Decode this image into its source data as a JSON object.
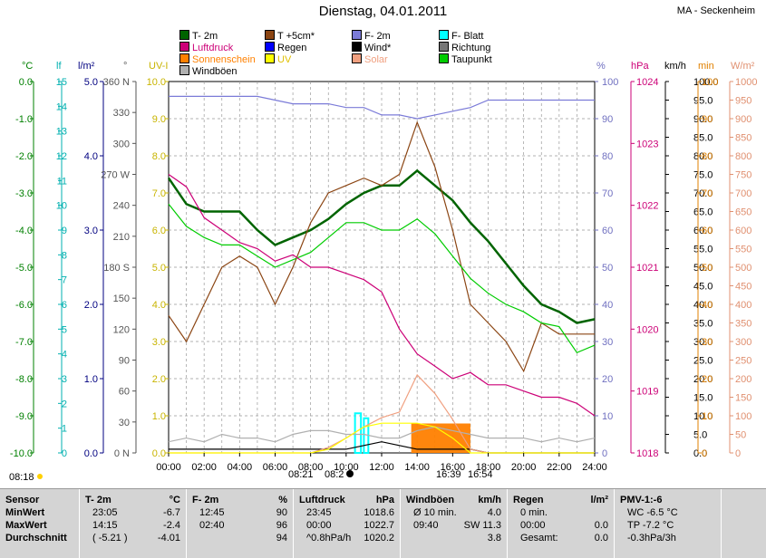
{
  "title": "Dienstag, 04.01.2011",
  "station": "MA - Seckenheim",
  "legend": [
    {
      "label": "T- 2m",
      "color": "#006400",
      "text": "#000000"
    },
    {
      "label": "T +5cm*",
      "color": "#8b4513",
      "text": "#000000"
    },
    {
      "label": "F- 2m",
      "color": "#7b7bd8",
      "text": "#000000"
    },
    {
      "label": "F- Blatt",
      "color": "#00ffff",
      "text": "#000000"
    },
    {
      "label": "Luftdruck",
      "color": "#cc0077",
      "text": "#cc0077"
    },
    {
      "label": "Regen",
      "color": "#0000ff",
      "text": "#000000"
    },
    {
      "label": "Wind*",
      "color": "#000000",
      "text": "#000000"
    },
    {
      "label": "Richtung",
      "color": "#777777",
      "text": "#000000"
    },
    {
      "label": "Sonnenschein",
      "color": "#ff8000",
      "text": "#ff8000"
    },
    {
      "label": "UV",
      "color": "#ffff00",
      "text": "#e0c000"
    },
    {
      "label": "Solar",
      "color": "#f0a080",
      "text": "#f0a080"
    },
    {
      "label": "Taupunkt",
      "color": "#00cc00",
      "text": "#000000"
    },
    {
      "label": "Windböen",
      "color": "#b0b0b0",
      "text": "#000000"
    }
  ],
  "axes": {
    "temp": {
      "unit": "°C",
      "color": "#008000",
      "ticks": [
        "0.0",
        "-1.0",
        "-2.0",
        "-3.0",
        "-4.0",
        "-5.0",
        "-6.0",
        "-7.0",
        "-8.0",
        "-9.0",
        "-10.0"
      ]
    },
    "leaf": {
      "unit": "lf",
      "color": "#00b0b0",
      "ticks": [
        "15",
        "14",
        "13",
        "12",
        "11",
        "10",
        "9",
        "8",
        "7",
        "6",
        "5",
        "4",
        "3",
        "2",
        "1",
        "0"
      ]
    },
    "rain": {
      "unit": "l/m²",
      "color": "#000080",
      "ticks": [
        "5.0",
        "4.0",
        "3.0",
        "2.0",
        "1.0",
        "0.0"
      ]
    },
    "dir": {
      "unit": "°",
      "color": "#555555",
      "ticks": [
        "360 N",
        "330",
        "300",
        "270 W",
        "240",
        "210",
        "180 S",
        "150",
        "120",
        "90",
        "60",
        "30",
        "0 N"
      ]
    },
    "uv": {
      "unit": "UV-I",
      "color": "#c8b400",
      "ticks": [
        "10.0",
        "9.0",
        "8.0",
        "7.0",
        "6.0",
        "5.0",
        "4.0",
        "3.0",
        "2.0",
        "1.0",
        "0.0"
      ]
    },
    "hum": {
      "unit": "%",
      "color": "#7070c0",
      "ticks": [
        "100",
        "90",
        "80",
        "70",
        "60",
        "50",
        "40",
        "30",
        "20",
        "10",
        "0"
      ]
    },
    "press": {
      "unit": "hPa",
      "color": "#cc0077",
      "ticks": [
        "1024",
        "1023",
        "1022",
        "1021",
        "1020",
        "1019",
        "1018"
      ]
    },
    "wind": {
      "unit": "km/h",
      "color": "#000000",
      "ticks": [
        "100.0",
        "95.0",
        "90.0",
        "85.0",
        "80.0",
        "75.0",
        "70.0",
        "65.0",
        "60.0",
        "55.0",
        "50.0",
        "45.0",
        "40.0",
        "35.0",
        "30.0",
        "25.0",
        "20.0",
        "15.0",
        "10.0",
        "5.0",
        "0.0"
      ]
    },
    "sunmin": {
      "unit": "min",
      "color": "#e08000",
      "ticks": [
        "100",
        "90",
        "80",
        "70",
        "60",
        "50",
        "40",
        "30",
        "20",
        "10",
        "0"
      ]
    },
    "solar": {
      "unit": "W/m²",
      "color": "#e09070",
      "ticks": [
        "1000",
        "950",
        "900",
        "850",
        "800",
        "750",
        "700",
        "650",
        "600",
        "550",
        "500",
        "450",
        "400",
        "350",
        "300",
        "250",
        "200",
        "150",
        "100",
        "50",
        "0"
      ]
    }
  },
  "xticks": [
    "00:00",
    "02:00",
    "04:00",
    "06:00",
    "08:00",
    "10:00",
    "12:00",
    "14:00",
    "16:00",
    "18:00",
    "20:00",
    "22:00",
    "24:00"
  ],
  "astro": {
    "sunrise": "08:18",
    "rise2": "08:21",
    "rise3": "08:2",
    "set1": "16:39",
    "set2": "16:54"
  },
  "chart_data": {
    "type": "line",
    "x": [
      "00:00",
      "01:00",
      "02:00",
      "03:00",
      "04:00",
      "05:00",
      "06:00",
      "07:00",
      "08:00",
      "09:00",
      "10:00",
      "11:00",
      "12:00",
      "13:00",
      "14:00",
      "15:00",
      "16:00",
      "17:00",
      "18:00",
      "19:00",
      "20:00",
      "21:00",
      "22:00",
      "23:00",
      "24:00"
    ],
    "xlim": [
      0,
      24
    ],
    "series": [
      {
        "name": "T- 2m",
        "color": "#006400",
        "axis": "temp",
        "values": [
          -2.6,
          -3.3,
          -3.5,
          -3.5,
          -3.5,
          -4.0,
          -4.4,
          -4.2,
          -4.0,
          -3.7,
          -3.3,
          -3.0,
          -2.8,
          -2.8,
          -2.4,
          -2.8,
          -3.2,
          -3.8,
          -4.3,
          -4.9,
          -5.5,
          -6.0,
          -6.2,
          -6.5,
          -6.4
        ]
      },
      {
        "name": "T +5cm*",
        "color": "#8b4513",
        "axis": "temp",
        "values": [
          -6.3,
          -7.0,
          -6.0,
          -5.0,
          -4.7,
          -5.0,
          -6.0,
          -5.0,
          -3.8,
          -3.0,
          -2.8,
          -2.6,
          -2.8,
          -2.5,
          -1.1,
          -2.3,
          -4.0,
          -6.0,
          -6.5,
          -7.0,
          -7.8,
          -6.5,
          -6.8,
          -6.8,
          -6.8
        ]
      },
      {
        "name": "Taupunkt",
        "color": "#00cc00",
        "axis": "temp",
        "values": [
          -3.3,
          -3.9,
          -4.2,
          -4.4,
          -4.4,
          -4.7,
          -5.0,
          -4.8,
          -4.6,
          -4.2,
          -3.8,
          -3.8,
          -4.0,
          -4.0,
          -3.7,
          -4.1,
          -4.7,
          -5.3,
          -5.7,
          -6.0,
          -6.2,
          -6.5,
          -6.6,
          -7.3,
          -7.1
        ]
      },
      {
        "name": "Luftdruck",
        "color": "#cc0077",
        "axis": "press",
        "values": [
          1022.5,
          1022.3,
          1021.8,
          1021.6,
          1021.4,
          1021.3,
          1021.1,
          1021.2,
          1021.0,
          1021.0,
          1020.9,
          1020.8,
          1020.6,
          1020.0,
          1019.6,
          1019.4,
          1019.2,
          1019.3,
          1019.1,
          1019.1,
          1019.0,
          1018.9,
          1018.9,
          1018.8,
          1018.6
        ]
      },
      {
        "name": "F- 2m",
        "color": "#7b7bd8",
        "axis": "hum",
        "values": [
          96,
          96,
          96,
          96,
          96,
          96,
          95,
          94,
          94,
          94,
          93,
          93,
          91,
          91,
          90,
          91,
          92,
          93,
          95,
          95,
          95,
          95,
          95,
          95,
          95
        ]
      },
      {
        "name": "Windböen",
        "color": "#b0b0b0",
        "axis": "wind",
        "values": [
          3,
          4,
          3,
          5,
          4,
          4,
          3,
          5,
          6,
          6,
          5,
          5,
          4,
          4,
          6,
          7,
          6,
          5,
          4,
          4,
          4,
          3,
          4,
          3,
          4
        ]
      },
      {
        "name": "Wind*",
        "color": "#000000",
        "axis": "wind",
        "values": [
          1,
          1,
          1,
          1,
          1,
          1,
          1,
          1,
          1,
          1,
          1,
          2,
          3,
          2,
          1,
          1,
          1,
          1,
          0,
          0,
          0,
          0,
          0,
          0,
          0
        ]
      },
      {
        "name": "Solar",
        "color": "#f0a080",
        "axis": "solar",
        "values": [
          0,
          0,
          0,
          0,
          0,
          0,
          0,
          0,
          0,
          15,
          40,
          70,
          95,
          110,
          210,
          160,
          90,
          10,
          0,
          0,
          0,
          0,
          0,
          0,
          0
        ]
      },
      {
        "name": "UV",
        "color": "#ffff00",
        "axis": "uv",
        "values": [
          0,
          0,
          0,
          0,
          0,
          0,
          0,
          0,
          0,
          0.1,
          0.4,
          0.7,
          0.8,
          0.8,
          0.8,
          0.7,
          0.4,
          0,
          0,
          0,
          0,
          0,
          0,
          0,
          0
        ]
      }
    ],
    "sunshine_bars": {
      "name": "Sonnenschein",
      "color": "#ff8000",
      "axis": "sunmin",
      "x_start": [
        "13:40"
      ],
      "x_end": [
        "17:00"
      ],
      "values": [
        5
      ]
    },
    "leaf_bars": {
      "name": "F- Blatt",
      "color": "#00ffff",
      "axis": "leaf",
      "x_start": [
        "10:30",
        "11:00"
      ],
      "x_end": [
        "10:50",
        "11:15"
      ],
      "values": [
        1.6,
        1.4
      ]
    }
  },
  "table": {
    "headers": [
      {
        "name": "Sensor",
        "unit": ""
      },
      {
        "name": "T- 2m",
        "unit": "°C"
      },
      {
        "name": "F- 2m",
        "unit": "%"
      },
      {
        "name": "Luftdruck",
        "unit": "hPa"
      },
      {
        "name": "Windböen",
        "unit": "km/h"
      },
      {
        "name": "Regen",
        "unit": "l/m²"
      },
      {
        "name": "PMV-1:-6",
        "unit": ""
      }
    ],
    "rows": [
      {
        "label": "MinWert",
        "c1a": "23:05",
        "c1b": "-6.7",
        "c2a": "12:45",
        "c2b": "90",
        "c3a": "23:45",
        "c3b": "1018.6",
        "c4a": "Ø 10 min.",
        "c4b": "4.0",
        "c5a": "0 min.",
        "c5b": "",
        "c6": "WC -6.5 °C"
      },
      {
        "label": "MaxWert",
        "c1a": "14:15",
        "c1b": "-2.4",
        "c2a": "02:40",
        "c2b": "96",
        "c3a": "00:00",
        "c3b": "1022.7",
        "c4a": "09:40",
        "c4b": "SW 11.3",
        "c5a": "00:00",
        "c5b": "0.0",
        "c6": "TP -7.2 °C"
      },
      {
        "label": "Durchschnitt",
        "c1a": "( -5.21 )",
        "c1b": "-4.01",
        "c2a": "",
        "c2b": "94",
        "c3a": "^0.8hPa/h",
        "c3b": "1020.2",
        "c4a": "",
        "c4b": "3.8",
        "c5a": "Gesamt:",
        "c5b": "0.0",
        "c6": "-0.3hPa/3h"
      }
    ]
  }
}
